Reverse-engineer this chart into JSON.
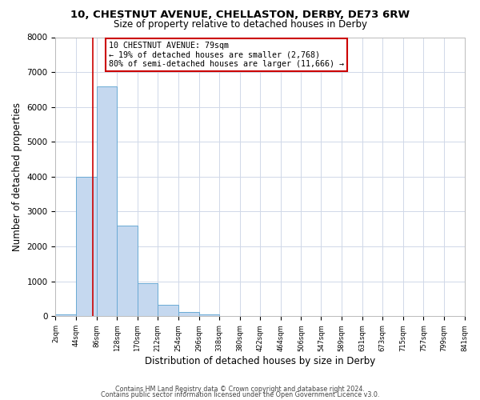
{
  "title": "10, CHESTNUT AVENUE, CHELLASTON, DERBY, DE73 6RW",
  "subtitle": "Size of property relative to detached houses in Derby",
  "xlabel": "Distribution of detached houses by size in Derby",
  "ylabel": "Number of detached properties",
  "footer_line1": "Contains HM Land Registry data © Crown copyright and database right 2024.",
  "footer_line2": "Contains public sector information licensed under the Open Government Licence v3.0.",
  "annotation_title": "10 CHESTNUT AVENUE: 79sqm",
  "annotation_line1": "← 19% of detached houses are smaller (2,768)",
  "annotation_line2": "80% of semi-detached houses are larger (11,666) →",
  "property_size": 79,
  "bar_edges": [
    2,
    44,
    86,
    128,
    170,
    212,
    254,
    296,
    338,
    380,
    422,
    464,
    506,
    547,
    589,
    631,
    673,
    715,
    757,
    799,
    841
  ],
  "bar_heights": [
    50,
    4000,
    6600,
    2600,
    950,
    330,
    130,
    50,
    0,
    0,
    0,
    0,
    0,
    0,
    0,
    0,
    0,
    0,
    0,
    0
  ],
  "bar_color": "#c5d8ef",
  "bar_edge_color": "#6aaad4",
  "vline_color": "#cc0000",
  "vline_x": 79,
  "annotation_box_color": "#cc0000",
  "background_color": "#ffffff",
  "grid_color": "#d0d8e8",
  "ylim": [
    0,
    8000
  ],
  "yticks": [
    0,
    1000,
    2000,
    3000,
    4000,
    5000,
    6000,
    7000,
    8000
  ],
  "tick_labels": [
    "2sqm",
    "44sqm",
    "86sqm",
    "128sqm",
    "170sqm",
    "212sqm",
    "254sqm",
    "296sqm",
    "338sqm",
    "380sqm",
    "422sqm",
    "464sqm",
    "506sqm",
    "547sqm",
    "589sqm",
    "631sqm",
    "673sqm",
    "715sqm",
    "757sqm",
    "799sqm",
    "841sqm"
  ]
}
